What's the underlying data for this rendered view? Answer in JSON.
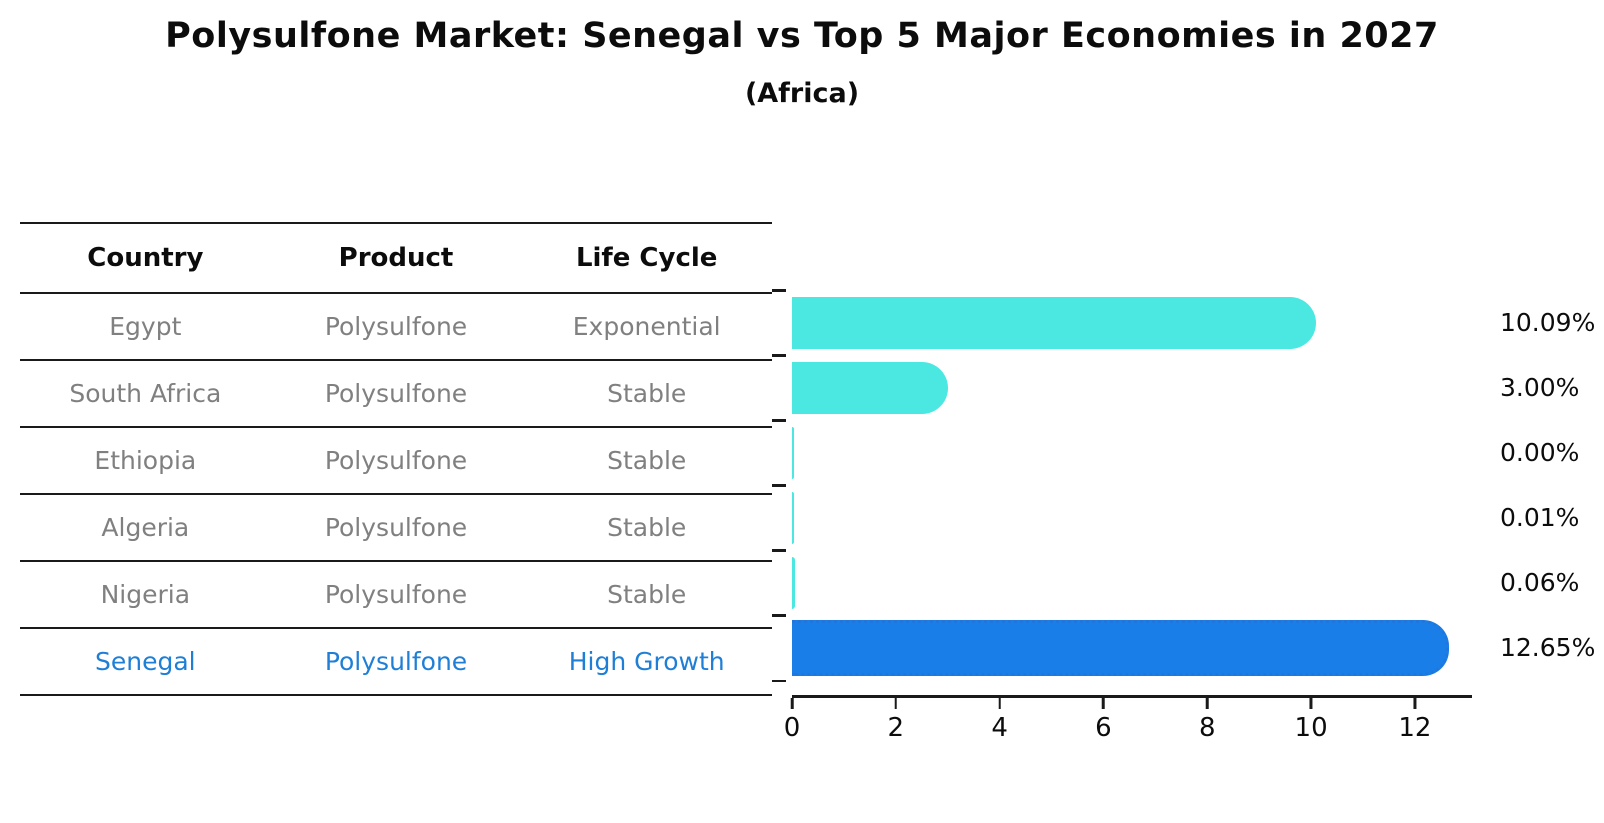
{
  "header": {
    "title": "Polysulfone Market: Senegal vs Top 5 Major Economies in 2027",
    "subtitle": "(Africa)"
  },
  "table": {
    "headers": [
      "Country",
      "Product",
      "Life Cycle"
    ],
    "rows": [
      {
        "country": "Egypt",
        "product": "Polysulfone",
        "life_cycle": "Exponential"
      },
      {
        "country": "South Africa",
        "product": "Polysulfone",
        "life_cycle": "Stable"
      },
      {
        "country": "Ethiopia",
        "product": "Polysulfone",
        "life_cycle": "Stable"
      },
      {
        "country": "Algeria",
        "product": "Polysulfone",
        "life_cycle": "Stable"
      },
      {
        "country": "Nigeria",
        "product": "Polysulfone",
        "life_cycle": "Stable"
      },
      {
        "country": "Senegal",
        "product": "Polysulfone",
        "life_cycle": "High Growth"
      }
    ]
  },
  "chart_data": {
    "type": "bar",
    "orientation": "horizontal",
    "title": "Polysulfone Market: Senegal vs Top 5 Major Economies in 2027",
    "subtitle": "(Africa)",
    "categories": [
      "Egypt",
      "South Africa",
      "Ethiopia",
      "Algeria",
      "Nigeria",
      "Senegal"
    ],
    "values": [
      10.09,
      3.0,
      0.0,
      0.01,
      0.06,
      12.65
    ],
    "value_labels": [
      "10.09%",
      "3.00%",
      "0.00%",
      "0.01%",
      "0.06%",
      "12.65%"
    ],
    "highlight_index": 5,
    "xticks": [
      0,
      2,
      4,
      6,
      8,
      10,
      12
    ],
    "xlim": [
      0,
      13.1
    ],
    "grid": false,
    "legend": false,
    "bar_color": "#4be8e2",
    "highlight_color": "#1a7ee8"
  },
  "colors": {
    "bar-cyan": "#4be8e2",
    "bar-blue": "#1a7ee8",
    "bar-blue-edge": "#1f77dd",
    "text-gray": "#808080",
    "text-blue": "#1f7fd6",
    "line-dark": "#1a1a1a"
  }
}
